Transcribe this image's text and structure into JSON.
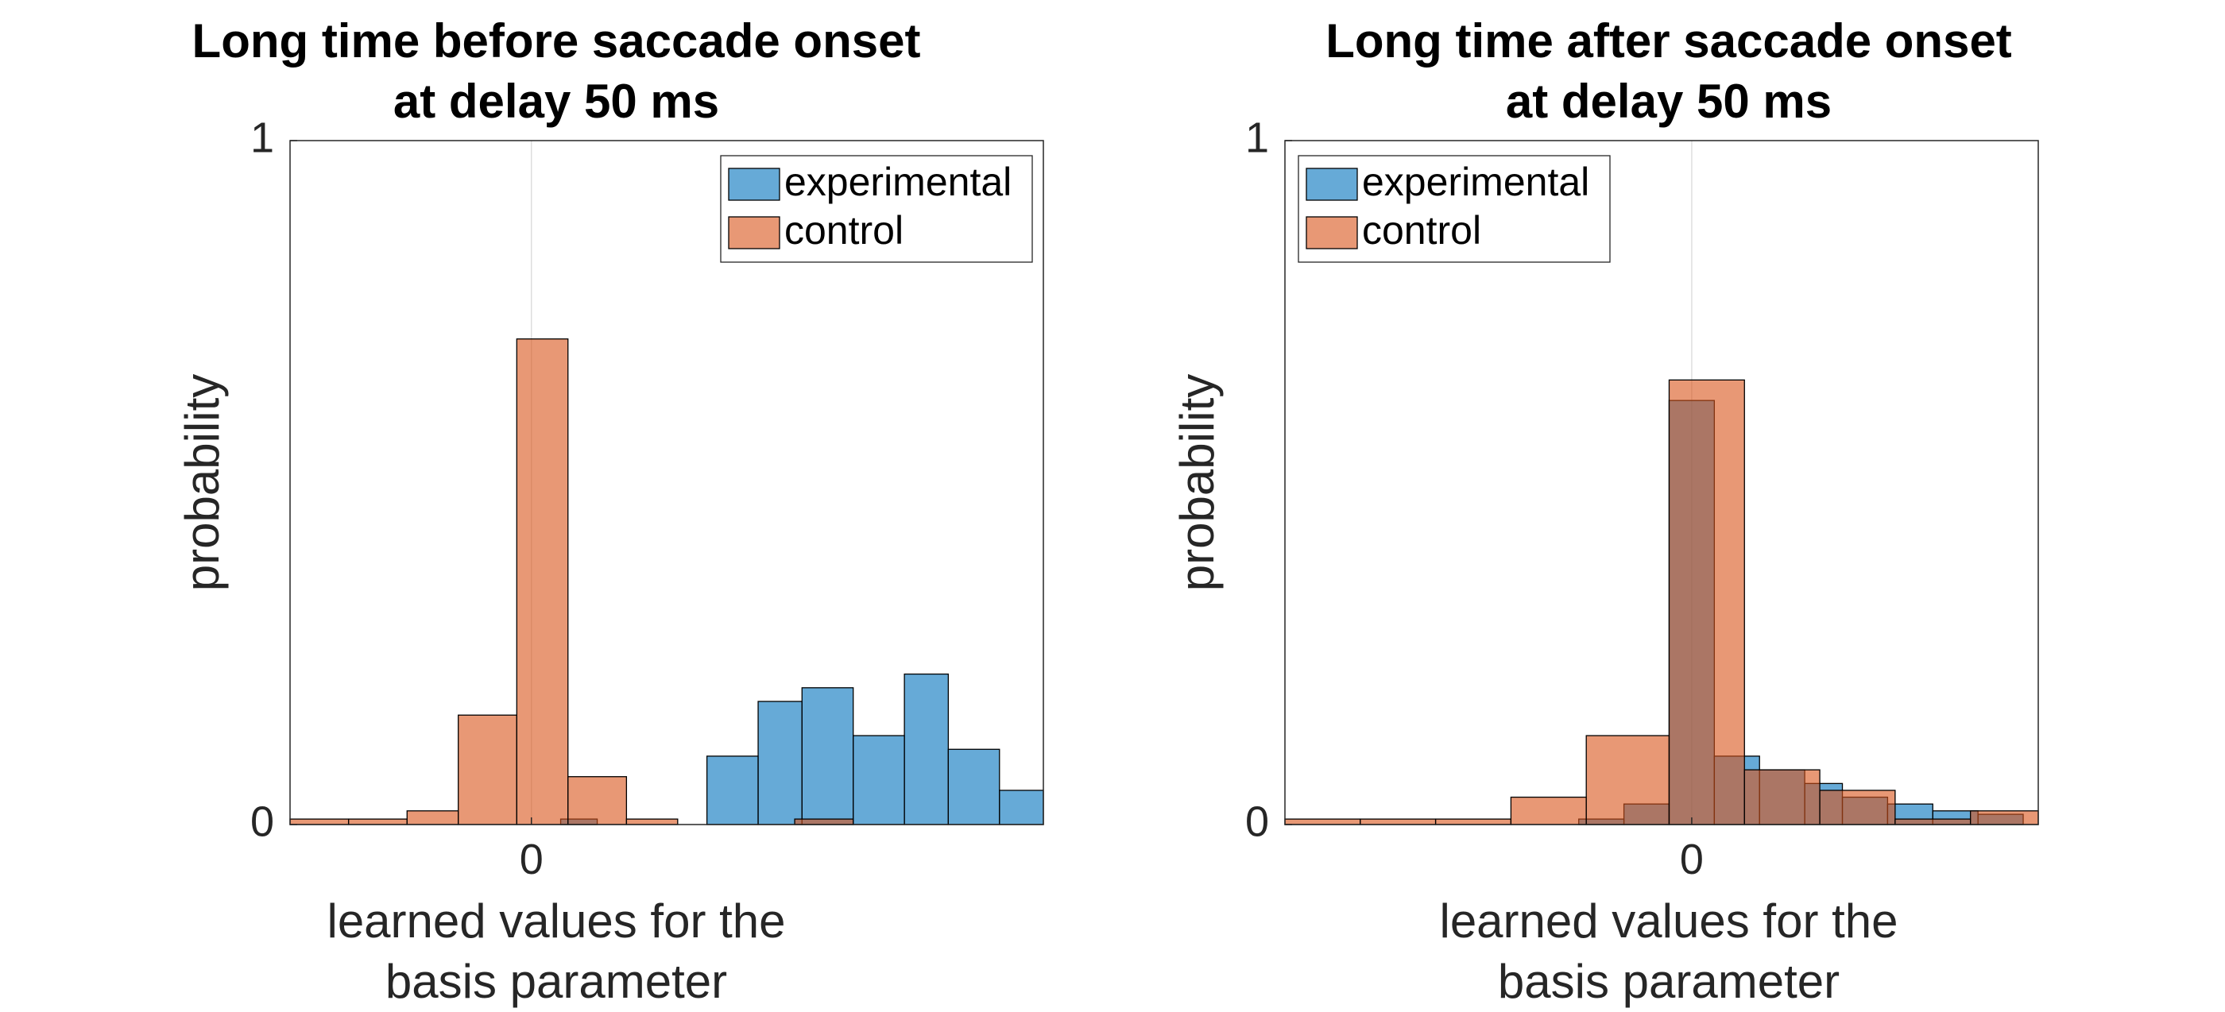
{
  "chart_data": [
    {
      "type": "histogram",
      "title": [
        "Long time before saccade onset",
        "at delay 50 ms"
      ],
      "xlabel": [
        "learned values for the",
        "basis parameter"
      ],
      "ylabel": "probability",
      "ylim": [
        0,
        1
      ],
      "yticks": [
        0,
        1
      ],
      "ytick_labels": [
        "0",
        "1"
      ],
      "xlim": [
        -0.33,
        0.7
      ],
      "xticks": [
        0
      ],
      "xtick_labels": [
        "0"
      ],
      "grid": "x",
      "legend_position": "top-right",
      "series": [
        {
          "name": "experimental",
          "color": "#0072BD",
          "bins": [
            {
              "x0": 0.04,
              "x1": 0.09,
              "value": 0.008
            },
            {
              "x0": 0.24,
              "x1": 0.31,
              "value": 0.1
            },
            {
              "x0": 0.31,
              "x1": 0.37,
              "value": 0.18
            },
            {
              "x0": 0.37,
              "x1": 0.44,
              "value": 0.2
            },
            {
              "x0": 0.44,
              "x1": 0.51,
              "value": 0.13
            },
            {
              "x0": 0.51,
              "x1": 0.57,
              "value": 0.22
            },
            {
              "x0": 0.57,
              "x1": 0.64,
              "value": 0.11
            },
            {
              "x0": 0.64,
              "x1": 0.7,
              "value": 0.05
            }
          ]
        },
        {
          "name": "control",
          "color": "#D95319",
          "bins": [
            {
              "x0": -0.33,
              "x1": -0.25,
              "value": 0.008
            },
            {
              "x0": -0.25,
              "x1": -0.17,
              "value": 0.008
            },
            {
              "x0": -0.17,
              "x1": -0.1,
              "value": 0.02
            },
            {
              "x0": -0.1,
              "x1": -0.02,
              "value": 0.16
            },
            {
              "x0": -0.02,
              "x1": 0.05,
              "value": 0.71
            },
            {
              "x0": 0.05,
              "x1": 0.13,
              "value": 0.07
            },
            {
              "x0": 0.13,
              "x1": 0.2,
              "value": 0.008
            },
            {
              "x0": 0.36,
              "x1": 0.44,
              "value": 0.008
            }
          ]
        }
      ]
    },
    {
      "type": "histogram",
      "title": [
        "Long time after saccade onset",
        "at delay 50 ms"
      ],
      "xlabel": [
        "learned values for the",
        "basis parameter"
      ],
      "ylabel": "probability",
      "ylim": [
        0,
        1
      ],
      "yticks": [
        0,
        1
      ],
      "ytick_labels": [
        "0",
        "1"
      ],
      "xlim": [
        -0.54,
        0.46
      ],
      "xticks": [
        0
      ],
      "xtick_labels": [
        "0"
      ],
      "grid": "x",
      "legend_position": "top-left",
      "series": [
        {
          "name": "experimental",
          "color": "#0072BD",
          "bins": [
            {
              "x0": -0.15,
              "x1": -0.09,
              "value": 0.008
            },
            {
              "x0": -0.09,
              "x1": -0.03,
              "value": 0.03
            },
            {
              "x0": -0.03,
              "x1": 0.03,
              "value": 0.62
            },
            {
              "x0": 0.03,
              "x1": 0.09,
              "value": 0.1
            },
            {
              "x0": 0.09,
              "x1": 0.15,
              "value": 0.08
            },
            {
              "x0": 0.15,
              "x1": 0.2,
              "value": 0.06
            },
            {
              "x0": 0.2,
              "x1": 0.26,
              "value": 0.04
            },
            {
              "x0": 0.26,
              "x1": 0.32,
              "value": 0.03
            },
            {
              "x0": 0.32,
              "x1": 0.38,
              "value": 0.02
            },
            {
              "x0": 0.38,
              "x1": 0.44,
              "value": 0.015
            }
          ]
        },
        {
          "name": "control",
          "color": "#D95319",
          "bins": [
            {
              "x0": -0.54,
              "x1": -0.44,
              "value": 0.008
            },
            {
              "x0": -0.44,
              "x1": -0.34,
              "value": 0.008
            },
            {
              "x0": -0.34,
              "x1": -0.24,
              "value": 0.008
            },
            {
              "x0": -0.24,
              "x1": -0.14,
              "value": 0.04
            },
            {
              "x0": -0.14,
              "x1": -0.03,
              "value": 0.13
            },
            {
              "x0": -0.03,
              "x1": 0.07,
              "value": 0.65
            },
            {
              "x0": 0.07,
              "x1": 0.17,
              "value": 0.08
            },
            {
              "x0": 0.17,
              "x1": 0.27,
              "value": 0.05
            },
            {
              "x0": 0.27,
              "x1": 0.37,
              "value": 0.008
            },
            {
              "x0": 0.37,
              "x1": 0.46,
              "value": 0.02
            }
          ]
        }
      ]
    }
  ]
}
